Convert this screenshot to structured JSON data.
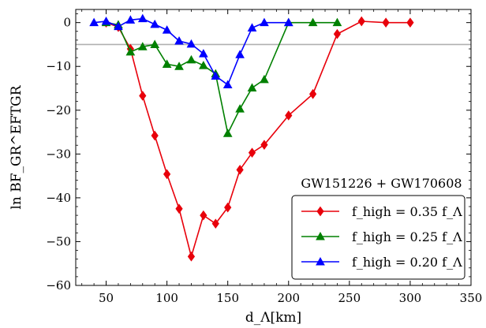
{
  "chart_data": {
    "type": "line",
    "xlabel": "d_Λ[km]",
    "ylabel": "ln BF_GR^EFTGR",
    "xlim": [
      25,
      350
    ],
    "ylim": [
      -60,
      3
    ],
    "xticks": [
      50,
      100,
      150,
      200,
      250,
      300,
      350
    ],
    "yticks": [
      0,
      -10,
      -20,
      -30,
      -40,
      -50,
      -60
    ],
    "reference_line": {
      "y": -5,
      "color": "#b0b0b0"
    },
    "legend_title": "GW151226 + GW170608",
    "legend_position": "lower-right",
    "series": [
      {
        "name": "f_high = 0.35 f_Λ",
        "color": "#e8000b",
        "marker": "diamond",
        "x": [
          50,
          60,
          70,
          80,
          90,
          100,
          110,
          120,
          130,
          140,
          150,
          160,
          170,
          180,
          200,
          220,
          240,
          260,
          280,
          300
        ],
        "y": [
          0,
          -1,
          -6,
          -16.7,
          -25.8,
          -34.6,
          -42.5,
          -53.4,
          -44,
          -45.9,
          -42.2,
          -33.6,
          -29.7,
          -27.9,
          -21.2,
          -16.3,
          -2.6,
          0.3,
          0,
          0
        ]
      },
      {
        "name": "f_high = 0.25 f_Λ",
        "color": "#008000",
        "marker": "triangle-up",
        "x": [
          50,
          60,
          70,
          80,
          90,
          100,
          110,
          120,
          130,
          140,
          150,
          160,
          170,
          180,
          200,
          220,
          240
        ],
        "y": [
          0,
          -0.5,
          -6.7,
          -5.5,
          -5,
          -9.5,
          -10,
          -8.5,
          -9.8,
          -11.7,
          -25.3,
          -19.7,
          -14.9,
          -13,
          0,
          0,
          0
        ]
      },
      {
        "name": "f_high = 0.20 f_Λ",
        "color": "#0000ff",
        "marker": "triangle-up",
        "x": [
          40,
          50,
          60,
          70,
          80,
          90,
          100,
          110,
          120,
          130,
          140,
          150,
          160,
          170,
          180,
          200
        ],
        "y": [
          0,
          0.3,
          -0.9,
          0.6,
          0.9,
          -0.4,
          -1.7,
          -4.2,
          -4.9,
          -7.1,
          -12.2,
          -14.2,
          -7.3,
          -1.2,
          0,
          0
        ]
      }
    ]
  }
}
